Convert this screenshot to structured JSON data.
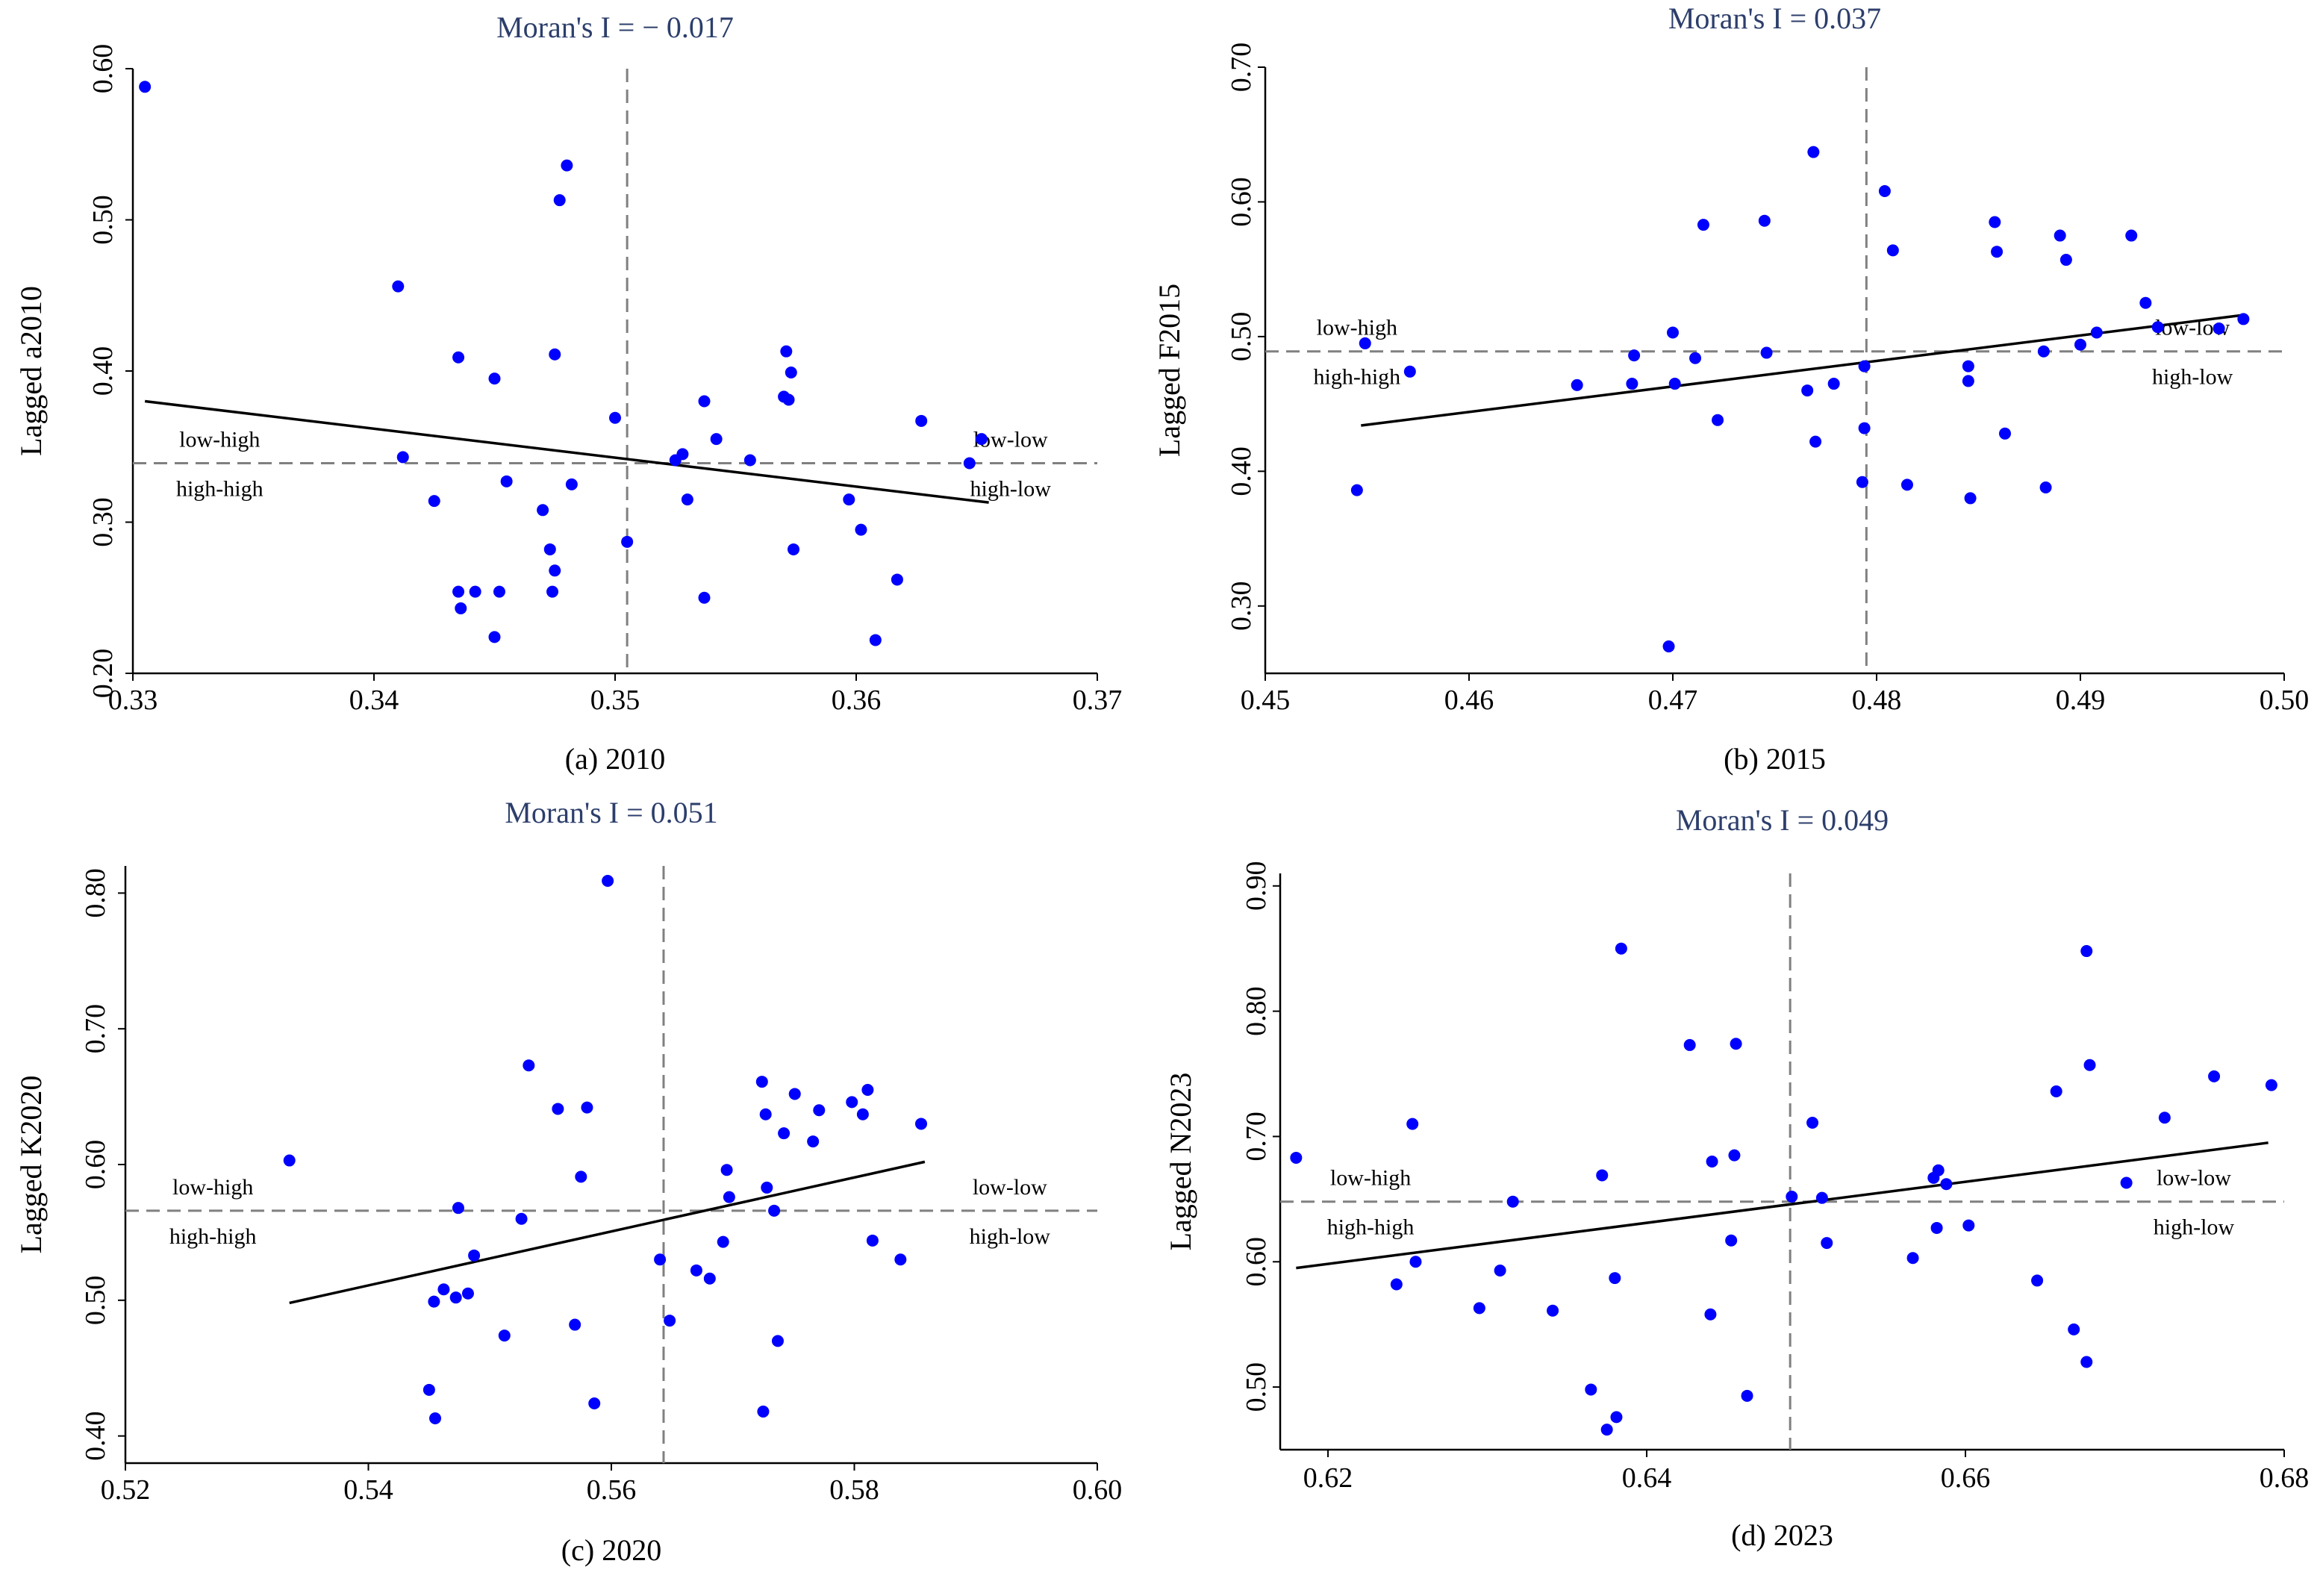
{
  "chart_data": [
    {
      "type": "scatter",
      "title": "Moran's I = − 0.017",
      "caption": "(a) 2010",
      "xlabel": "",
      "ylabel": "Lagged a2010",
      "xlim": [
        0.33,
        0.37
      ],
      "ylim": [
        0.2,
        0.6
      ],
      "xticks": [
        "0.33",
        "0.34",
        "0.35",
        "0.36",
        "0.37"
      ],
      "yticks": [
        "0.20",
        "0.30",
        "0.40",
        "0.50",
        "0.60"
      ],
      "mean_x": 0.3505,
      "mean_y": 0.339,
      "fit_line": [
        [
          0.3305,
          0.38
        ],
        [
          0.3655,
          0.313
        ]
      ],
      "quadrants": {
        "low_high": "low-high",
        "high_high": "high-high",
        "low_low": "low-low",
        "high_low": "high-low"
      },
      "points": [
        [
          0.3305,
          0.588
        ],
        [
          0.341,
          0.456
        ],
        [
          0.3412,
          0.343
        ],
        [
          0.3435,
          0.409
        ],
        [
          0.35,
          0.369
        ],
        [
          0.3425,
          0.314
        ],
        [
          0.345,
          0.395
        ],
        [
          0.3475,
          0.411
        ],
        [
          0.347,
          0.308
        ],
        [
          0.3455,
          0.327
        ],
        [
          0.348,
          0.536
        ],
        [
          0.3477,
          0.513
        ],
        [
          0.3482,
          0.325
        ],
        [
          0.3473,
          0.282
        ],
        [
          0.3475,
          0.268
        ],
        [
          0.3474,
          0.254
        ],
        [
          0.3435,
          0.254
        ],
        [
          0.3442,
          0.254
        ],
        [
          0.3436,
          0.243
        ],
        [
          0.3452,
          0.254
        ],
        [
          0.345,
          0.224
        ],
        [
          0.3505,
          0.287
        ],
        [
          0.3525,
          0.341
        ],
        [
          0.3528,
          0.345
        ],
        [
          0.353,
          0.315
        ],
        [
          0.3537,
          0.38
        ],
        [
          0.3542,
          0.355
        ],
        [
          0.3556,
          0.341
        ],
        [
          0.357,
          0.383
        ],
        [
          0.3572,
          0.381
        ],
        [
          0.3571,
          0.413
        ],
        [
          0.3573,
          0.399
        ],
        [
          0.3574,
          0.282
        ],
        [
          0.3537,
          0.25
        ],
        [
          0.3597,
          0.315
        ],
        [
          0.3602,
          0.295
        ],
        [
          0.3608,
          0.222
        ],
        [
          0.3617,
          0.262
        ],
        [
          0.3627,
          0.367
        ],
        [
          0.3647,
          0.339
        ],
        [
          0.3652,
          0.355
        ]
      ]
    },
    {
      "type": "scatter",
      "title": "Moran's I = 0.037",
      "caption": "(b) 2015",
      "xlabel": "",
      "ylabel": "Lagged F2015",
      "xlim": [
        0.45,
        0.5
      ],
      "ylim": [
        0.25,
        0.7
      ],
      "xticks": [
        "0.45",
        "0.46",
        "0.47",
        "0.48",
        "0.49",
        "0.50"
      ],
      "yticks": [
        "0.30",
        "0.40",
        "0.50",
        "0.60",
        "0.70"
      ],
      "mean_x": 0.4795,
      "mean_y": 0.489,
      "fit_line": [
        [
          0.4547,
          0.434
        ],
        [
          0.498,
          0.516
        ]
      ],
      "quadrants": {
        "low_high": "low-high",
        "high_high": "high-high",
        "low_low": "low-low",
        "high_low": "high-low"
      },
      "points": [
        [
          0.4545,
          0.386
        ],
        [
          0.4549,
          0.495
        ],
        [
          0.4571,
          0.474
        ],
        [
          0.4653,
          0.464
        ],
        [
          0.468,
          0.465
        ],
        [
          0.4681,
          0.486
        ],
        [
          0.4698,
          0.27
        ],
        [
          0.47,
          0.503
        ],
        [
          0.4701,
          0.465
        ],
        [
          0.4711,
          0.484
        ],
        [
          0.4715,
          0.583
        ],
        [
          0.4722,
          0.438
        ],
        [
          0.4745,
          0.586
        ],
        [
          0.4746,
          0.488
        ],
        [
          0.4766,
          0.46
        ],
        [
          0.4769,
          0.637
        ],
        [
          0.477,
          0.422
        ],
        [
          0.4779,
          0.465
        ],
        [
          0.4794,
          0.478
        ],
        [
          0.4793,
          0.392
        ],
        [
          0.4794,
          0.432
        ],
        [
          0.4804,
          0.608
        ],
        [
          0.4808,
          0.564
        ],
        [
          0.4815,
          0.39
        ],
        [
          0.4845,
          0.478
        ],
        [
          0.4845,
          0.467
        ],
        [
          0.4846,
          0.38
        ],
        [
          0.4858,
          0.585
        ],
        [
          0.4859,
          0.563
        ],
        [
          0.4863,
          0.428
        ],
        [
          0.4882,
          0.489
        ],
        [
          0.4883,
          0.388
        ],
        [
          0.489,
          0.575
        ],
        [
          0.4893,
          0.557
        ],
        [
          0.49,
          0.494
        ],
        [
          0.4908,
          0.503
        ],
        [
          0.4925,
          0.575
        ],
        [
          0.4932,
          0.525
        ],
        [
          0.4938,
          0.507
        ],
        [
          0.4968,
          0.506
        ],
        [
          0.498,
          0.513
        ]
      ]
    },
    {
      "type": "scatter",
      "title": "Moran's I = 0.051",
      "caption": "(c) 2020",
      "xlabel": "",
      "ylabel": "Lagged K2020",
      "xlim": [
        0.52,
        0.6
      ],
      "ylim": [
        0.38,
        0.82
      ],
      "xticks": [
        "0.52",
        "0.54",
        "0.56",
        "0.58",
        "0.60"
      ],
      "yticks": [
        "0.40",
        "0.50",
        "0.60",
        "0.70",
        "0.80"
      ],
      "mean_x": 0.5643,
      "mean_y": 0.566,
      "fit_line": [
        [
          0.5335,
          0.498
        ],
        [
          0.5858,
          0.602
        ]
      ],
      "quadrants": {
        "low_high": "low-high",
        "high_high": "high-high",
        "low_low": "low-low",
        "high_low": "high-low"
      },
      "points": [
        [
          0.5335,
          0.603
        ],
        [
          0.545,
          0.434
        ],
        [
          0.5455,
          0.413
        ],
        [
          0.5454,
          0.499
        ],
        [
          0.5462,
          0.508
        ],
        [
          0.5472,
          0.502
        ],
        [
          0.5474,
          0.568
        ],
        [
          0.5482,
          0.505
        ],
        [
          0.5487,
          0.533
        ],
        [
          0.5512,
          0.474
        ],
        [
          0.5526,
          0.56
        ],
        [
          0.5532,
          0.673
        ],
        [
          0.5556,
          0.641
        ],
        [
          0.557,
          0.482
        ],
        [
          0.5575,
          0.591
        ],
        [
          0.558,
          0.642
        ],
        [
          0.5586,
          0.424
        ],
        [
          0.5597,
          0.809
        ],
        [
          0.564,
          0.53
        ],
        [
          0.5648,
          0.485
        ],
        [
          0.567,
          0.522
        ],
        [
          0.5681,
          0.516
        ],
        [
          0.5692,
          0.543
        ],
        [
          0.5695,
          0.596
        ],
        [
          0.5697,
          0.576
        ],
        [
          0.5724,
          0.661
        ],
        [
          0.5725,
          0.418
        ],
        [
          0.5727,
          0.637
        ],
        [
          0.5728,
          0.583
        ],
        [
          0.5734,
          0.566
        ],
        [
          0.5737,
          0.47
        ],
        [
          0.5742,
          0.623
        ],
        [
          0.5751,
          0.652
        ],
        [
          0.5766,
          0.617
        ],
        [
          0.5771,
          0.64
        ],
        [
          0.5798,
          0.646
        ],
        [
          0.5807,
          0.637
        ],
        [
          0.5811,
          0.655
        ],
        [
          0.5815,
          0.544
        ],
        [
          0.5838,
          0.53
        ],
        [
          0.5855,
          0.63
        ]
      ]
    },
    {
      "type": "scatter",
      "title": "Moran's I = 0.049",
      "caption": "(d) 2023",
      "xlabel": "",
      "ylabel": "Lagged N2023",
      "xlim": [
        0.617,
        0.68
      ],
      "ylim": [
        0.45,
        0.91
      ],
      "xticks": [
        "0.62",
        "0.64",
        "0.66",
        "0.68"
      ],
      "yticks": [
        "0.50",
        "0.60",
        "0.70",
        "0.80",
        "0.90"
      ],
      "mean_x": 0.649,
      "mean_y": 0.648,
      "fit_line": [
        [
          0.618,
          0.595
        ],
        [
          0.679,
          0.695
        ]
      ],
      "quadrants": {
        "low_high": "low-high",
        "high_high": "high-high",
        "low_low": "low-low",
        "high_low": "high-low"
      },
      "points": [
        [
          0.618,
          0.683
        ],
        [
          0.6243,
          0.582
        ],
        [
          0.6253,
          0.71
        ],
        [
          0.6255,
          0.6
        ],
        [
          0.6295,
          0.563
        ],
        [
          0.6308,
          0.593
        ],
        [
          0.6316,
          0.648
        ],
        [
          0.6341,
          0.561
        ],
        [
          0.6365,
          0.498
        ],
        [
          0.6372,
          0.669
        ],
        [
          0.6375,
          0.466
        ],
        [
          0.638,
          0.587
        ],
        [
          0.6381,
          0.476
        ],
        [
          0.6384,
          0.85
        ],
        [
          0.6427,
          0.773
        ],
        [
          0.644,
          0.558
        ],
        [
          0.6441,
          0.68
        ],
        [
          0.6453,
          0.617
        ],
        [
          0.6455,
          0.685
        ],
        [
          0.6456,
          0.774
        ],
        [
          0.6463,
          0.493
        ],
        [
          0.6491,
          0.652
        ],
        [
          0.6504,
          0.711
        ],
        [
          0.651,
          0.651
        ],
        [
          0.6513,
          0.615
        ],
        [
          0.6567,
          0.603
        ],
        [
          0.658,
          0.667
        ],
        [
          0.6582,
          0.627
        ],
        [
          0.6583,
          0.673
        ],
        [
          0.6588,
          0.662
        ],
        [
          0.6602,
          0.629
        ],
        [
          0.6645,
          0.585
        ],
        [
          0.6657,
          0.736
        ],
        [
          0.6668,
          0.546
        ],
        [
          0.6676,
          0.52
        ],
        [
          0.6676,
          0.848
        ],
        [
          0.6678,
          0.757
        ],
        [
          0.6701,
          0.663
        ],
        [
          0.6725,
          0.715
        ],
        [
          0.6756,
          0.748
        ],
        [
          0.6792,
          0.741
        ]
      ]
    }
  ]
}
